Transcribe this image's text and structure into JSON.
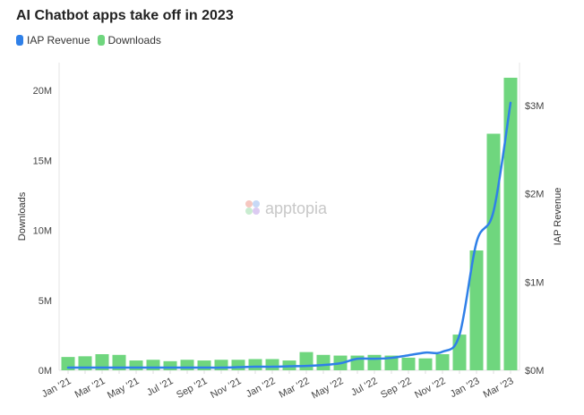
{
  "chart_data": {
    "type": "bar",
    "title": "AI Chatbot apps take off in 2023",
    "categories": [
      "Jan '21",
      "Feb '21",
      "Mar '21",
      "Apr '21",
      "May '21",
      "Jun '21",
      "Jul '21",
      "Aug '21",
      "Sep '21",
      "Oct '21",
      "Nov '21",
      "Dec '21",
      "Jan '22",
      "Feb '22",
      "Mar '22",
      "Apr '22",
      "May '22",
      "Jun '22",
      "Jul '22",
      "Aug '22",
      "Sep '22",
      "Oct '22",
      "Nov '22",
      "Dec '22",
      "Jan '23",
      "Feb '23",
      "Mar '23"
    ],
    "tick_labels": [
      "Jan '21",
      "Mar '21",
      "May '21",
      "Jul '21",
      "Sep '21",
      "Nov '21",
      "Jan '22",
      "Mar '22",
      "May '22",
      "Jul '22",
      "Sep '22",
      "Nov '22",
      "Jan '23",
      "Mar '23"
    ],
    "series": [
      {
        "name": "Downloads",
        "type": "bar",
        "axis": "left",
        "color": "#6fd67e",
        "values": [
          0.95,
          1.0,
          1.15,
          1.1,
          0.7,
          0.75,
          0.65,
          0.75,
          0.7,
          0.75,
          0.75,
          0.8,
          0.8,
          0.7,
          1.3,
          1.1,
          1.05,
          1.05,
          1.1,
          1.05,
          0.9,
          0.85,
          1.15,
          2.55,
          8.56,
          16.9,
          20.9
        ]
      },
      {
        "name": "IAP Revenue",
        "type": "line",
        "axis": "right",
        "color": "#2f80e8",
        "values": [
          0.03,
          0.03,
          0.03,
          0.03,
          0.03,
          0.03,
          0.03,
          0.03,
          0.03,
          0.03,
          0.035,
          0.04,
          0.04,
          0.045,
          0.05,
          0.06,
          0.08,
          0.13,
          0.13,
          0.14,
          0.17,
          0.2,
          0.21,
          0.4,
          1.45,
          1.8,
          3.03
        ]
      }
    ],
    "legend": [
      "IAP Revenue",
      "Downloads"
    ],
    "legend_position": "top-left",
    "ylabel": "Downloads",
    "y2label": "IAP Revenue",
    "ylim": [
      0,
      21.5
    ],
    "y2lim": [
      0,
      3.35
    ],
    "yticks": [
      0,
      5,
      10,
      15,
      20
    ],
    "ytick_labels": [
      "0M",
      "5M",
      "10M",
      "15M",
      "20M"
    ],
    "y2ticks": [
      0,
      1,
      2,
      3
    ],
    "y2tick_labels": [
      "$0M",
      "$1M",
      "$2M",
      "$3M"
    ],
    "watermark": "apptopia"
  }
}
